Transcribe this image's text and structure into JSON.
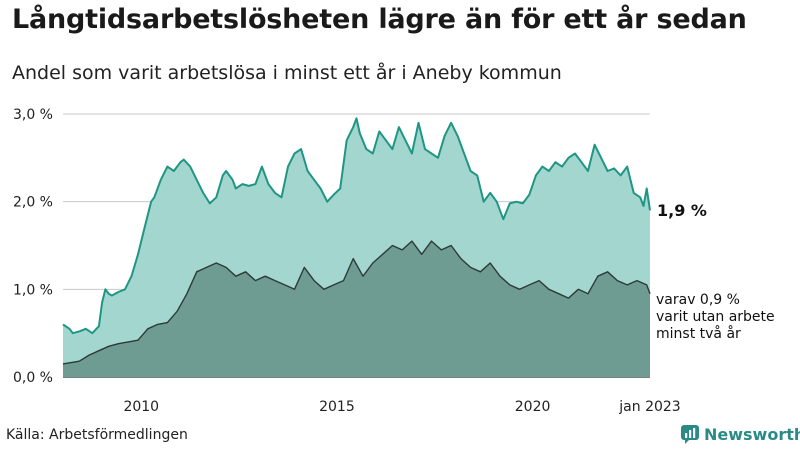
{
  "title": "Långtidsarbetslösheten lägre än för ett år sedan",
  "subtitle": "Andel som varit arbetslösa i minst ett år i Aneby kommun",
  "source": "Källa: Arbetsförmedlingen",
  "brand": "Newsworthy",
  "colors": {
    "total_fill": "#a3d6cf",
    "total_line": "#1f9683",
    "longterm_fill": "#6e9c93",
    "longterm_line": "#2d3b37",
    "grid": "#c8c8c8",
    "brand": "#2b8a86"
  },
  "chart_data": {
    "type": "area",
    "x_ticks": [
      "2010",
      "2015",
      "2020",
      "jan 2023"
    ],
    "y_ticks": [
      "0,0 %",
      "1,0 %",
      "2,0 %",
      "3,0 %"
    ],
    "ylim": [
      0,
      3.0
    ],
    "x_range": [
      "2008-01",
      "2023-01"
    ],
    "grid": true,
    "annotations": {
      "total_end_label": "1,9 %",
      "longterm_end_label": [
        "varav 0,9 %",
        "varit utan arbete",
        "minst två år"
      ]
    },
    "series": [
      {
        "key": "total",
        "points": [
          [
            "2008-01",
            0.6
          ],
          [
            "2008-03",
            0.55
          ],
          [
            "2008-04",
            0.5
          ],
          [
            "2008-06",
            0.52
          ],
          [
            "2008-08",
            0.55
          ],
          [
            "2008-10",
            0.5
          ],
          [
            "2008-12",
            0.58
          ],
          [
            "2009-01",
            0.85
          ],
          [
            "2009-02",
            1.0
          ],
          [
            "2009-03",
            0.95
          ],
          [
            "2009-04",
            0.93
          ],
          [
            "2009-06",
            0.97
          ],
          [
            "2009-08",
            1.0
          ],
          [
            "2009-10",
            1.15
          ],
          [
            "2009-12",
            1.4
          ],
          [
            "2010-02",
            1.7
          ],
          [
            "2010-04",
            2.0
          ],
          [
            "2010-05",
            2.05
          ],
          [
            "2010-07",
            2.25
          ],
          [
            "2010-09",
            2.4
          ],
          [
            "2010-11",
            2.35
          ],
          [
            "2011-01",
            2.45
          ],
          [
            "2011-02",
            2.48
          ],
          [
            "2011-04",
            2.4
          ],
          [
            "2011-06",
            2.25
          ],
          [
            "2011-08",
            2.1
          ],
          [
            "2011-10",
            1.98
          ],
          [
            "2011-12",
            2.05
          ],
          [
            "2012-02",
            2.3
          ],
          [
            "2012-03",
            2.35
          ],
          [
            "2012-05",
            2.25
          ],
          [
            "2012-06",
            2.15
          ],
          [
            "2012-08",
            2.2
          ],
          [
            "2012-10",
            2.18
          ],
          [
            "2012-12",
            2.2
          ],
          [
            "2013-02",
            2.4
          ],
          [
            "2013-04",
            2.2
          ],
          [
            "2013-06",
            2.1
          ],
          [
            "2013-08",
            2.05
          ],
          [
            "2013-10",
            2.4
          ],
          [
            "2013-12",
            2.55
          ],
          [
            "2014-02",
            2.6
          ],
          [
            "2014-04",
            2.35
          ],
          [
            "2014-06",
            2.25
          ],
          [
            "2014-08",
            2.15
          ],
          [
            "2014-10",
            2.0
          ],
          [
            "2014-12",
            2.08
          ],
          [
            "2015-02",
            2.15
          ],
          [
            "2015-04",
            2.7
          ],
          [
            "2015-06",
            2.85
          ],
          [
            "2015-07",
            2.95
          ],
          [
            "2015-08",
            2.78
          ],
          [
            "2015-10",
            2.6
          ],
          [
            "2015-12",
            2.55
          ],
          [
            "2016-02",
            2.8
          ],
          [
            "2016-04",
            2.7
          ],
          [
            "2016-06",
            2.6
          ],
          [
            "2016-08",
            2.85
          ],
          [
            "2016-10",
            2.7
          ],
          [
            "2016-12",
            2.55
          ],
          [
            "2017-02",
            2.9
          ],
          [
            "2017-04",
            2.6
          ],
          [
            "2017-06",
            2.55
          ],
          [
            "2017-08",
            2.5
          ],
          [
            "2017-10",
            2.75
          ],
          [
            "2017-12",
            2.9
          ],
          [
            "2018-02",
            2.75
          ],
          [
            "2018-04",
            2.55
          ],
          [
            "2018-06",
            2.35
          ],
          [
            "2018-08",
            2.3
          ],
          [
            "2018-10",
            2.0
          ],
          [
            "2018-12",
            2.1
          ],
          [
            "2019-02",
            2.0
          ],
          [
            "2019-04",
            1.8
          ],
          [
            "2019-06",
            1.98
          ],
          [
            "2019-08",
            2.0
          ],
          [
            "2019-10",
            1.98
          ],
          [
            "2019-12",
            2.08
          ],
          [
            "2020-02",
            2.3
          ],
          [
            "2020-04",
            2.4
          ],
          [
            "2020-06",
            2.35
          ],
          [
            "2020-08",
            2.45
          ],
          [
            "2020-10",
            2.4
          ],
          [
            "2020-12",
            2.5
          ],
          [
            "2021-02",
            2.55
          ],
          [
            "2021-04",
            2.45
          ],
          [
            "2021-06",
            2.35
          ],
          [
            "2021-08",
            2.65
          ],
          [
            "2021-10",
            2.5
          ],
          [
            "2021-12",
            2.35
          ],
          [
            "2022-02",
            2.38
          ],
          [
            "2022-04",
            2.3
          ],
          [
            "2022-06",
            2.4
          ],
          [
            "2022-08",
            2.1
          ],
          [
            "2022-10",
            2.05
          ],
          [
            "2022-11",
            1.95
          ],
          [
            "2022-12",
            2.15
          ],
          [
            "2023-01",
            1.9
          ]
        ]
      },
      {
        "key": "longterm",
        "points": [
          [
            "2008-01",
            0.15
          ],
          [
            "2008-06",
            0.18
          ],
          [
            "2008-09",
            0.25
          ],
          [
            "2008-12",
            0.3
          ],
          [
            "2009-03",
            0.35
          ],
          [
            "2009-06",
            0.38
          ],
          [
            "2009-09",
            0.4
          ],
          [
            "2009-12",
            0.42
          ],
          [
            "2010-03",
            0.55
          ],
          [
            "2010-06",
            0.6
          ],
          [
            "2010-09",
            0.62
          ],
          [
            "2010-12",
            0.75
          ],
          [
            "2011-03",
            0.95
          ],
          [
            "2011-06",
            1.2
          ],
          [
            "2011-09",
            1.25
          ],
          [
            "2011-12",
            1.3
          ],
          [
            "2012-03",
            1.25
          ],
          [
            "2012-06",
            1.15
          ],
          [
            "2012-09",
            1.2
          ],
          [
            "2012-12",
            1.1
          ],
          [
            "2013-03",
            1.15
          ],
          [
            "2013-06",
            1.1
          ],
          [
            "2013-09",
            1.05
          ],
          [
            "2013-12",
            1.0
          ],
          [
            "2014-03",
            1.25
          ],
          [
            "2014-06",
            1.1
          ],
          [
            "2014-09",
            1.0
          ],
          [
            "2014-12",
            1.05
          ],
          [
            "2015-03",
            1.1
          ],
          [
            "2015-06",
            1.35
          ],
          [
            "2015-09",
            1.15
          ],
          [
            "2015-12",
            1.3
          ],
          [
            "2016-03",
            1.4
          ],
          [
            "2016-06",
            1.5
          ],
          [
            "2016-09",
            1.45
          ],
          [
            "2016-12",
            1.55
          ],
          [
            "2017-03",
            1.4
          ],
          [
            "2017-06",
            1.55
          ],
          [
            "2017-09",
            1.45
          ],
          [
            "2017-12",
            1.5
          ],
          [
            "2018-03",
            1.35
          ],
          [
            "2018-06",
            1.25
          ],
          [
            "2018-09",
            1.2
          ],
          [
            "2018-12",
            1.3
          ],
          [
            "2019-03",
            1.15
          ],
          [
            "2019-06",
            1.05
          ],
          [
            "2019-09",
            1.0
          ],
          [
            "2019-12",
            1.05
          ],
          [
            "2020-03",
            1.1
          ],
          [
            "2020-06",
            1.0
          ],
          [
            "2020-09",
            0.95
          ],
          [
            "2020-12",
            0.9
          ],
          [
            "2021-03",
            1.0
          ],
          [
            "2021-06",
            0.95
          ],
          [
            "2021-09",
            1.15
          ],
          [
            "2021-12",
            1.2
          ],
          [
            "2022-03",
            1.1
          ],
          [
            "2022-06",
            1.05
          ],
          [
            "2022-09",
            1.1
          ],
          [
            "2022-12",
            1.05
          ],
          [
            "2023-01",
            0.95
          ]
        ]
      }
    ]
  }
}
